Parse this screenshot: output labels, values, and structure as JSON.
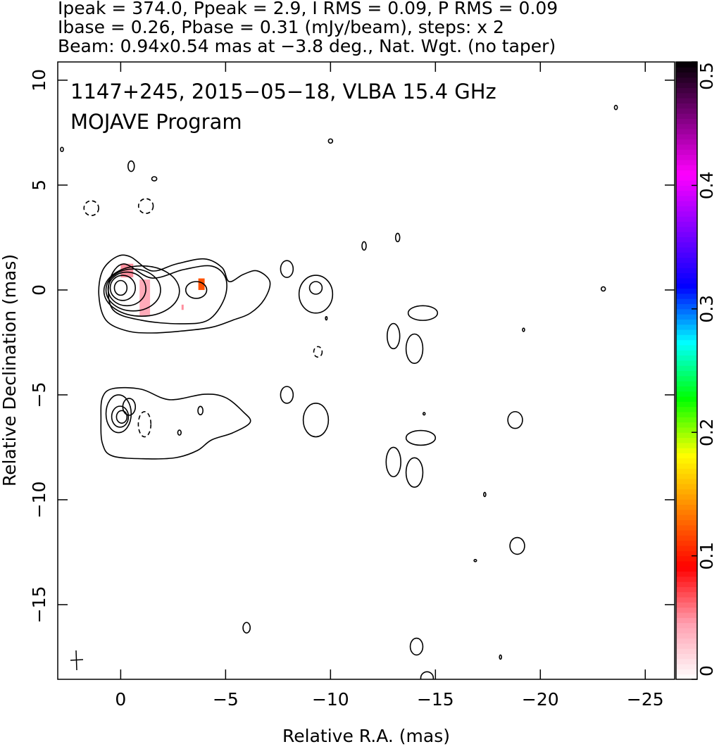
{
  "chart_data": {
    "type": "contour",
    "title_lines": [
      "Ipeak = 374.0, Ppeak = 2.9, I RMS = 0.09, P RMS = 0.09",
      "Ibase = 0.26, Pbase = 0.31 (mJy/beam), steps: x 2",
      "Beam: 0.94x0.54 mas at −3.8 deg., Nat. Wgt. (no taper)"
    ],
    "annotations": [
      "1147+245, 2015−05−18, VLBA 15.4 GHz",
      "MOJAVE Program"
    ],
    "xlabel": "Relative R.A. (mas)",
    "ylabel": "Relative Declination (mas)",
    "xlim": [
      3,
      -26.4
    ],
    "ylim": [
      -18.56,
      10.87
    ],
    "xticks": [
      0,
      {
        "value": -5,
        "label": "−5"
      },
      {
        "value": -10,
        "label": "−10"
      },
      {
        "value": -15,
        "label": "−15"
      },
      {
        "value": -20,
        "label": "−20"
      },
      {
        "value": -25,
        "label": "−25"
      }
    ],
    "yticks": [
      10,
      5,
      0,
      {
        "value": -5,
        "label": "−5"
      },
      {
        "value": -10,
        "label": "−10"
      },
      {
        "value": -15,
        "label": "−15"
      }
    ],
    "contour_color": "#000000",
    "contours": [
      {
        "x": [
          1.04,
          0.87,
          0.2,
          -0.47,
          -1.48,
          -2.65,
          -3.99,
          -4.83,
          -5.17,
          -5.84,
          -6.51,
          -7.11,
          -6.85,
          -6.17,
          -5.34,
          -4.33,
          -2.99,
          -1.48,
          -0.3,
          0.7
        ],
        "y": [
          -0.27,
          0.91,
          1.58,
          1.58,
          0.91,
          1.24,
          1.48,
          1.07,
          0.4,
          0.74,
          0.91,
          0.4,
          -0.44,
          -1.11,
          -1.44,
          -1.78,
          -1.95,
          -2.05,
          -1.95,
          -1.44
        ]
      },
      {
        "x": [
          0.54,
          -0.13,
          -1.48,
          -2.99,
          -4.33,
          -5.0,
          -4.93,
          -4.16,
          -2.82,
          -0.97,
          0.37
        ],
        "y": [
          0.4,
          1.24,
          0.57,
          0.97,
          1.14,
          0.57,
          -0.44,
          -1.44,
          -1.61,
          -1.44,
          -0.94
        ]
      },
      {
        "x": [
          0.87,
          0.37,
          -0.97,
          -2.32,
          -3.99,
          -5.0,
          -5.84,
          -6.17,
          -5.34,
          -4.33,
          -3.66,
          -2.65,
          -1.31,
          0.37,
          0.87,
          0.94
        ],
        "y": [
          -5.13,
          -4.7,
          -4.73,
          -5.23,
          -4.97,
          -5.13,
          -5.81,
          -6.31,
          -6.81,
          -7.15,
          -7.65,
          -7.99,
          -8.05,
          -7.92,
          -7.32,
          -6.14
        ]
      }
    ],
    "ellipses": [
      {
        "cx": 0,
        "cy": 0.1,
        "rx": 0.3,
        "ry": 0.35
      },
      {
        "cx": -0.1,
        "cy": 0.1,
        "rx": 0.6,
        "ry": 0.6
      },
      {
        "cx": -0.3,
        "cy": 0.05,
        "rx": 0.9,
        "ry": 0.8
      },
      {
        "cx": -0.6,
        "cy": 0,
        "rx": 1.3,
        "ry": 1.0
      },
      {
        "cx": -1.0,
        "cy": -0.05,
        "rx": 1.8,
        "ry": 1.2
      },
      {
        "cx": -3.6,
        "cy": 0,
        "rx": 0.5,
        "ry": 0.4
      },
      {
        "cx": -7.92,
        "cy": 1.0,
        "rx": 0.3,
        "ry": 0.4
      },
      {
        "cx": -9.3,
        "cy": -0.2,
        "rx": 0.8,
        "ry": 0.9
      },
      {
        "cx": -9.3,
        "cy": 0.1,
        "rx": 0.3,
        "ry": 0.3
      },
      {
        "cx": -14.4,
        "cy": -1.1,
        "rx": 0.7,
        "ry": 0.35
      },
      {
        "cx": -13.0,
        "cy": -2.2,
        "rx": 0.3,
        "ry": 0.6
      },
      {
        "cx": -14.0,
        "cy": -2.8,
        "rx": 0.4,
        "ry": 0.7
      },
      {
        "cx": -13.2,
        "cy": 2.5,
        "rx": 0.1,
        "ry": 0.2
      },
      {
        "cx": -11.6,
        "cy": 2.1,
        "rx": 0.1,
        "ry": 0.2
      },
      {
        "cx": -10.0,
        "cy": 7.1,
        "rx": 0.1,
        "ry": 0.1
      },
      {
        "cx": -23.6,
        "cy": 8.7,
        "rx": 0.07,
        "ry": 0.1
      },
      {
        "cx": -23.0,
        "cy": 0.05,
        "rx": 0.1,
        "ry": 0.1
      },
      {
        "cx": -0.5,
        "cy": 5.9,
        "rx": 0.15,
        "ry": 0.25
      },
      {
        "cx": -1.6,
        "cy": 5.3,
        "rx": 0.12,
        "ry": 0.1
      },
      {
        "cx": -1.2,
        "cy": 4.0,
        "rx": 0.35,
        "ry": 0.35,
        "dashed": true
      },
      {
        "cx": 1.4,
        "cy": 3.9,
        "rx": 0.35,
        "ry": 0.35,
        "dashed": true
      },
      {
        "cx": -9.4,
        "cy": -2.95,
        "rx": 0.2,
        "ry": 0.25,
        "dashed": true
      },
      {
        "cx": 2.8,
        "cy": 6.7,
        "rx": 0.07,
        "ry": 0.1
      },
      {
        "cx": -6.0,
        "cy": -16.1,
        "rx": 0.17,
        "ry": 0.25
      },
      {
        "cx": -14.1,
        "cy": -17.0,
        "rx": 0.3,
        "ry": 0.4
      },
      {
        "cx": -14.6,
        "cy": -18.5,
        "rx": 0.3,
        "ry": 0.3
      },
      {
        "cx": -18.1,
        "cy": -17.5,
        "rx": 0.05,
        "ry": 0.1
      },
      {
        "cx": -18.8,
        "cy": -6.2,
        "rx": 0.35,
        "ry": 0.4
      },
      {
        "cx": -18.9,
        "cy": -12.2,
        "rx": 0.35,
        "ry": 0.4
      },
      {
        "cx": -17.35,
        "cy": -9.75,
        "rx": 0.05,
        "ry": 0.1
      },
      {
        "cx": -19.2,
        "cy": -1.9,
        "rx": 0.05,
        "ry": 0.08
      },
      {
        "cx": -14.46,
        "cy": -5.9,
        "rx": 0.05,
        "ry": 0.06
      },
      {
        "cx": -9.8,
        "cy": -1.35,
        "rx": 0.04,
        "ry": 0.08
      },
      {
        "cx": -16.9,
        "cy": -12.9,
        "rx": 0.06,
        "ry": 0.05
      },
      {
        "cx": 0.03,
        "cy": -6.04,
        "rx": 0.4,
        "ry": 0.5
      },
      {
        "cx": -0.05,
        "cy": -6.05,
        "rx": 0.25,
        "ry": 0.3
      },
      {
        "cx": -0.4,
        "cy": -5.57,
        "rx": 0.3,
        "ry": 0.4
      },
      {
        "cx": 0.1,
        "cy": -5.9,
        "rx": 0.6,
        "ry": 0.9
      },
      {
        "cx": -1.14,
        "cy": -6.4,
        "rx": 0.3,
        "ry": 0.6,
        "dashed": true
      },
      {
        "cx": -7.92,
        "cy": -5.0,
        "rx": 0.3,
        "ry": 0.4
      },
      {
        "cx": -9.3,
        "cy": -6.2,
        "rx": 0.6,
        "ry": 0.8
      },
      {
        "cx": -14.3,
        "cy": -7.05,
        "rx": 0.7,
        "ry": 0.35
      },
      {
        "cx": -13.0,
        "cy": -8.2,
        "rx": 0.35,
        "ry": 0.7
      },
      {
        "cx": -14.0,
        "cy": -8.7,
        "rx": 0.4,
        "ry": 0.7
      },
      {
        "cx": -3.8,
        "cy": -5.75,
        "rx": 0.12,
        "ry": 0.2
      },
      {
        "cx": -2.8,
        "cy": -6.8,
        "rx": 0.08,
        "ry": 0.12
      }
    ],
    "patches": [
      {
        "xlim": [
          -0.6,
          0.0
        ],
        "ylim": [
          0.6,
          1.25
        ],
        "value": 0.05
      },
      {
        "xlim": [
          -1.4,
          -0.9
        ],
        "ylim": [
          -1.25,
          0.5
        ],
        "value": 0.04
      },
      {
        "xlim": [
          -4.0,
          -3.7
        ],
        "ylim": [
          0.0,
          0.55
        ],
        "value": 0.12
      },
      {
        "xlim": [
          -3.0,
          -2.9
        ],
        "ylim": [
          -0.95,
          -0.7
        ],
        "value": 0.05
      }
    ],
    "colorbar": {
      "lim": [
        0,
        0.5
      ],
      "ticks": [
        0,
        0.1,
        0.2,
        0.3,
        0.4,
        0.5
      ],
      "colormap": [
        "#ffffff",
        "#ff9fb0",
        "#ff0000",
        "#ff8000",
        "#ffff00",
        "#00ff00",
        "#00ffff",
        "#0000ff",
        "#8000ff",
        "#ff00ff",
        "#800080",
        "#000000"
      ]
    }
  }
}
